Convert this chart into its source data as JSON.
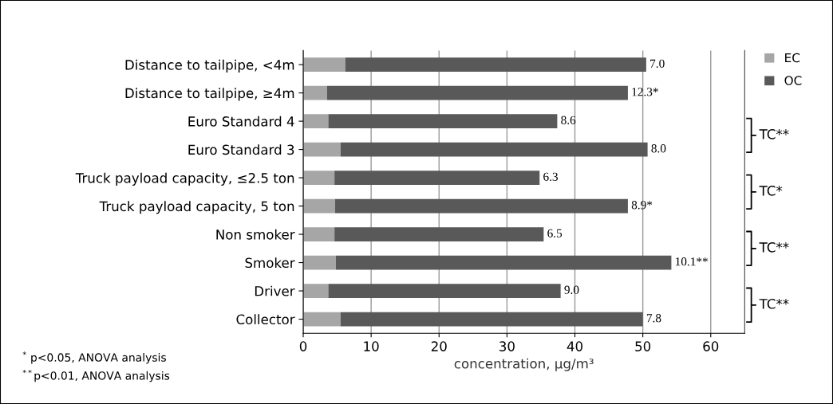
{
  "chart_data": {
    "type": "bar",
    "orientation": "horizontal",
    "stacked": true,
    "categories": [
      "Distance to tailpipe, <4m",
      "Distance to tailpipe, ≥4m",
      "Euro Standard 4",
      "Euro Standard 3",
      "Truck payload capacity, ≤2.5 ton",
      "Truck payload capacity, 5 ton",
      "Non smoker",
      "Smoker",
      "Driver",
      "Collector"
    ],
    "series": [
      {
        "name": "EC",
        "color": "#a6a6a6",
        "values": [
          6.2,
          3.5,
          3.7,
          5.5,
          4.6,
          4.7,
          4.6,
          4.8,
          3.7,
          5.5
        ]
      },
      {
        "name": "OC",
        "color": "#595959",
        "values": [
          44.3,
          44.3,
          33.7,
          45.2,
          30.2,
          43.1,
          30.8,
          49.4,
          34.2,
          44.5
        ]
      }
    ],
    "xlabel": "concentration, μg/m³",
    "xlim": [
      0,
      65
    ],
    "xticks": [
      0,
      10,
      20,
      30,
      40,
      50,
      60
    ],
    "grid": "x",
    "legend": "top right",
    "annotations": [
      {
        "text": "7.0",
        "x": 50.5,
        "y": "Distance to tailpipe, <4m"
      },
      {
        "text": "12.3*",
        "x": 47.8,
        "y": "Distance to tailpipe, ≥4m"
      },
      {
        "text": "8.6",
        "x": 37.4,
        "y": "Euro Standard 4"
      },
      {
        "text": "8.0",
        "x": 50.7,
        "y": "Euro Standard 3"
      },
      {
        "text": "6.3",
        "x": 34.8,
        "y": "Truck payload capacity, ≤2.5 ton"
      },
      {
        "text": "8.9*",
        "x": 47.8,
        "y": "Truck payload capacity, 5 ton"
      },
      {
        "text": "6.5",
        "x": 35.4,
        "y": "Non smoker"
      },
      {
        "text": "10.1**",
        "x": 54.2,
        "y": "Smoker"
      },
      {
        "text": "9.0",
        "x": 37.9,
        "y": "Driver"
      },
      {
        "text": "7.8",
        "x": 50.0,
        "y": "Collector"
      },
      "TC**",
      "TC*",
      "TC**",
      "TC**",
      "$^{*}$ p<0.05, ANOVA analysis",
      "$^{**}$p<0.01, ANOVA analysis"
    ]
  }
}
